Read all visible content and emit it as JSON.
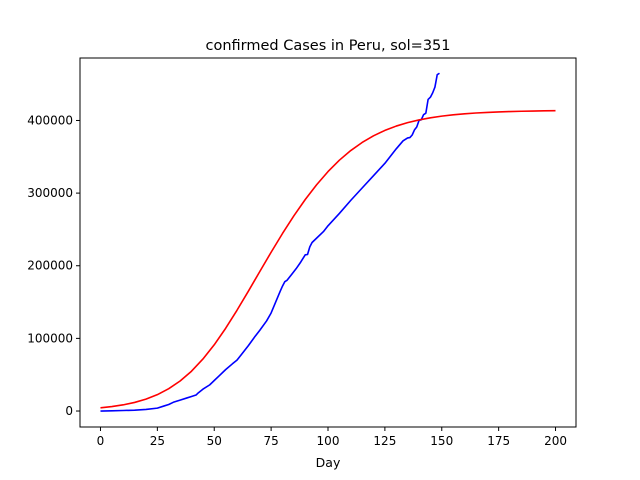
{
  "chart_data": {
    "type": "line",
    "title": "confirmed Cases in Peru, sol=351",
    "xlabel": "Day",
    "ylabel": "",
    "xlim": [
      -9,
      209
    ],
    "ylim": [
      -22000,
      486000
    ],
    "xticks": [
      0,
      25,
      50,
      75,
      100,
      125,
      150,
      175,
      200
    ],
    "yticks": [
      0,
      100000,
      200000,
      300000,
      400000
    ],
    "grid": false,
    "legend": "none",
    "series": [
      {
        "color": "#0000ff",
        "x": [
          0,
          5,
          10,
          15,
          20,
          25,
          28,
          30,
          32,
          35,
          38,
          40,
          42,
          43,
          45,
          48,
          50,
          52,
          55,
          58,
          60,
          62,
          65,
          68,
          70,
          73,
          75,
          77,
          79,
          80,
          81,
          82,
          84,
          86,
          88,
          90,
          91,
          92,
          93,
          95,
          98,
          100,
          105,
          110,
          115,
          120,
          125,
          130,
          133,
          135,
          136,
          137,
          138,
          139,
          140,
          141,
          142,
          143,
          144,
          145,
          146,
          147,
          148,
          149
        ],
        "y": [
          0,
          300,
          700,
          1200,
          2200,
          4000,
          7000,
          9000,
          12000,
          15000,
          18000,
          20000,
          22000,
          25000,
          30000,
          36000,
          42000,
          48000,
          57000,
          65000,
          70000,
          78000,
          90000,
          103000,
          111000,
          124000,
          135000,
          150000,
          165000,
          172000,
          178000,
          180000,
          188000,
          196000,
          205000,
          215000,
          215500,
          226000,
          232000,
          238000,
          247000,
          255000,
          272000,
          290000,
          307000,
          324000,
          341000,
          361000,
          372000,
          376000,
          376500,
          380000,
          387000,
          391000,
          400000,
          401000,
          408000,
          410000,
          429000,
          432000,
          438000,
          446000,
          463000,
          465000
        ]
      },
      {
        "color": "#ff0000",
        "x": [
          0,
          5,
          10,
          15,
          20,
          25,
          30,
          35,
          40,
          45,
          50,
          55,
          60,
          65,
          70,
          75,
          80,
          85,
          90,
          95,
          100,
          105,
          110,
          115,
          120,
          125,
          130,
          135,
          140,
          145,
          150,
          155,
          160,
          165,
          170,
          175,
          180,
          185,
          190,
          195,
          200
        ],
        "y": [
          4400,
          6100,
          8500,
          11800,
          16400,
          22500,
          30700,
          41300,
          54800,
          71500,
          91200,
          113800,
          138700,
          165000,
          191900,
          218600,
          244400,
          268700,
          291200,
          311500,
          329600,
          345300,
          358600,
          369700,
          378900,
          386300,
          392300,
          397000,
          400700,
          403700,
          406000,
          407800,
          409200,
          410300,
          411100,
          411800,
          412300,
          412700,
          413000,
          413300,
          413500
        ]
      }
    ]
  }
}
